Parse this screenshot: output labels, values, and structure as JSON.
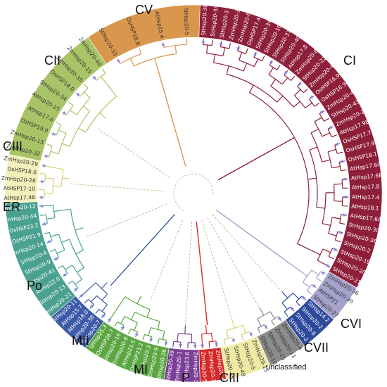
{
  "colors": {
    "CI": "#8e1f3a",
    "CV": "#d9974e",
    "CII": "#a9c467",
    "CIII_top": "#f3f0bb",
    "ER": "#4aa191",
    "Po": "#3c5aa8",
    "MII": "#5ca642",
    "MI": "#7c3f98",
    "P": "#d42a27",
    "CIII_bottom": "#eeeaa4",
    "unclassified": "#8c8c8c",
    "CVII": "#2d4a9c",
    "CVI": "#a5a2cc",
    "star": "#7f7fe8"
  },
  "group_labels": [
    "CV",
    "CI",
    "CII",
    "CIII",
    "ER",
    "Po",
    "MII",
    "MI",
    "P",
    "CIII",
    "unclassified",
    "CVII",
    "CVI"
  ],
  "groups": [
    {
      "key": "CI",
      "leaves": [
        "StHsp20-38",
        "StHsp20-33",
        "StHsp20-3",
        "ZmHsp20-38",
        "ZmHsp20-6",
        "OsHSP17.4",
        "StHsp20-34",
        "StHsp20-16",
        "StHsp20-37",
        "StHsp20-40",
        "AtHsp17.8",
        "ZmHsp20-8",
        "StHsp20-22",
        "ZmHsp20-42",
        "OsHSP16.9B",
        "OsHSP16.9",
        "ZmHsp20-41",
        "StHsp20-43",
        "ZmHsp20-27",
        "AtHsp17.9B",
        "OsHSP17.7",
        "OsHSP17.9",
        "OsHSP18.1",
        "AtHsp17.6C",
        "AtHsp17.6B",
        "AtHsp17.8",
        "AtHsp17.4",
        "AtHsp18.1",
        "AtHsp17.6A",
        "StHsp20-30",
        "StHsp20-36",
        "StHsp20-2",
        "StHsp20-19",
        "StHsp20-20",
        "StHsp20-21"
      ]
    },
    {
      "key": "CVI",
      "leaves": [
        "ZmHsp20-36",
        "ZmHsp20-30",
        "AtHSP21",
        "StHsp20-27"
      ]
    },
    {
      "key": "CVII",
      "leaves": [
        "StHsp14.2",
        "StHsp20-2",
        "StHsp20-8",
        "StHsp20-2"
      ]
    },
    {
      "key": "unclassified",
      "leaves": [
        "ZmHsp20-4",
        "ZmHsp20-11",
        "StHsp20-15",
        "StHsp20-10"
      ]
    },
    {
      "key": "CIII_bottom",
      "leaves": [
        "ZmHsp20-15",
        "StHsp20-5",
        "StHsp20-48",
        "StHsp20-45"
      ]
    },
    {
      "key": "P",
      "leaves": [
        "ZmHsp20-6",
        "ZmHsp20-7",
        "ZmHsp20-5"
      ]
    },
    {
      "key": "MI",
      "leaves": [
        "ZmHsp20-3",
        "AtHsp23.6",
        "ZmHsp20-1",
        "AtHsp20-39"
      ]
    },
    {
      "key": "MII",
      "leaves": [
        "StHsp20-26",
        "ZmHsp20-9",
        "ZmHsp20-3",
        "OsHSP23.2",
        "AtHsp23.5",
        "ZmHsp20-8",
        "StHsp20-16",
        "OsHSP26.7",
        "StHsp25.3"
      ]
    },
    {
      "key": "Po",
      "leaves": [
        "StHsp20-7",
        "StHsp20-38",
        "AtHsp18.0",
        "AtHsp15.7",
        "StHsp20-11"
      ]
    },
    {
      "key": "ER",
      "leaves": [
        "ZmHsp20-21",
        "StHsp20-13",
        "AtHsp22.0",
        "StHsp20-41",
        "StHsp20-9",
        "StHsp20-4",
        "ZmHsp20-14",
        "OsHSP21.9",
        "OsHSP23.2",
        "ZmHsp20-44",
        "ZmHsp20-12"
      ]
    },
    {
      "key": "CIII_top",
      "leaves": [
        "AtHsp17.4B",
        "AtHSP17-10",
        "ZmHsp20-28",
        "OsHSP18.6",
        "ZmHsp20-29"
      ]
    },
    {
      "key": "CII",
      "leaves": [
        "ZmHsp20-32",
        "ZmHsp20-13",
        "OsHSP19.0",
        "AtHsp17.6",
        "AtHsp20-25",
        "StHsp20-34",
        "OsHSP18.0",
        "ZmHsp20-35",
        "ZmHsp20-15",
        "ZmHsp20-40"
      ]
    },
    {
      "key": "CV",
      "leaves": [
        "StHsp20-33",
        "OsHSP18.8",
        "AtHsp15.4",
        "StHsp20-5"
      ]
    }
  ]
}
